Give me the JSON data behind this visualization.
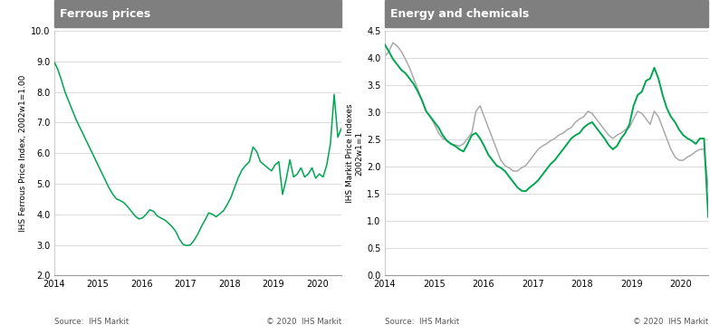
{
  "left_title": "Ferrous prices",
  "right_title": "Energy and chemicals",
  "left_ylabel": "IHS Ferrous Price Index, 2002w1=1.00",
  "right_ylabel": "IHS Markit Price Indexes\n2002w1=1",
  "left_source": "Source:  IHS Markit",
  "right_source": "Source:  IHS Markit",
  "copyright": "© 2020  IHS Markit",
  "header_color": "#7f7f7f",
  "header_text_color": "#ffffff",
  "green_color": "#00a651",
  "gray_color": "#aaaaaa",
  "bg_color": "#ffffff",
  "plot_bg_color": "#ffffff",
  "grid_color": "#cccccc",
  "left_ylim": [
    2.0,
    10.0
  ],
  "left_yticks": [
    2.0,
    3.0,
    4.0,
    5.0,
    6.0,
    7.0,
    8.0,
    9.0,
    10.0
  ],
  "right_ylim": [
    0.0,
    4.5
  ],
  "right_yticks": [
    0.0,
    0.5,
    1.0,
    1.5,
    2.0,
    2.5,
    3.0,
    3.5,
    4.0,
    4.5
  ],
  "xtick_labels": [
    "2014",
    "2015",
    "2016",
    "2017",
    "2018",
    "2019",
    "2020"
  ],
  "ferrous_y": [
    9.0,
    8.75,
    8.4,
    8.0,
    7.7,
    7.4,
    7.1,
    6.85,
    6.6,
    6.35,
    6.1,
    5.85,
    5.6,
    5.35,
    5.1,
    4.85,
    4.65,
    4.5,
    4.45,
    4.38,
    4.25,
    4.1,
    3.95,
    3.85,
    3.88,
    4.0,
    4.15,
    4.1,
    3.95,
    3.88,
    3.82,
    3.72,
    3.6,
    3.45,
    3.2,
    3.02,
    2.98,
    3.0,
    3.15,
    3.35,
    3.6,
    3.82,
    4.05,
    4.0,
    3.92,
    4.02,
    4.12,
    4.32,
    4.55,
    4.88,
    5.2,
    5.45,
    5.6,
    5.72,
    6.2,
    6.05,
    5.72,
    5.62,
    5.52,
    5.42,
    5.62,
    5.72,
    4.65,
    5.15,
    5.78,
    5.22,
    5.32,
    5.52,
    5.22,
    5.32,
    5.52,
    5.18,
    5.32,
    5.22,
    5.62,
    6.32,
    7.92,
    6.52,
    6.82
  ],
  "energy_y": [
    4.25,
    4.12,
    3.98,
    3.88,
    3.78,
    3.72,
    3.62,
    3.52,
    3.38,
    3.22,
    3.02,
    2.92,
    2.82,
    2.72,
    2.58,
    2.48,
    2.42,
    2.38,
    2.32,
    2.28,
    2.42,
    2.58,
    2.62,
    2.52,
    2.38,
    2.22,
    2.12,
    2.02,
    1.98,
    1.92,
    1.82,
    1.72,
    1.62,
    1.56,
    1.55,
    1.62,
    1.68,
    1.75,
    1.85,
    1.95,
    2.05,
    2.12,
    2.22,
    2.32,
    2.42,
    2.52,
    2.58,
    2.62,
    2.72,
    2.78,
    2.82,
    2.72,
    2.62,
    2.52,
    2.4,
    2.32,
    2.38,
    2.52,
    2.62,
    2.78,
    3.12,
    3.32,
    3.38,
    3.58,
    3.62,
    3.82,
    3.62,
    3.32,
    3.08,
    2.92,
    2.82,
    2.68,
    2.58,
    2.52,
    2.48,
    2.42,
    2.52,
    2.52,
    1.08
  ],
  "chemicals_y": [
    4.02,
    4.12,
    4.28,
    4.22,
    4.12,
    3.98,
    3.82,
    3.62,
    3.42,
    3.22,
    3.02,
    2.92,
    2.78,
    2.62,
    2.52,
    2.48,
    2.42,
    2.4,
    2.38,
    2.42,
    2.52,
    2.62,
    3.02,
    3.12,
    2.92,
    2.72,
    2.52,
    2.32,
    2.12,
    2.02,
    1.98,
    1.92,
    1.92,
    1.98,
    2.02,
    2.12,
    2.22,
    2.32,
    2.38,
    2.42,
    2.48,
    2.52,
    2.58,
    2.62,
    2.68,
    2.72,
    2.82,
    2.88,
    2.92,
    3.02,
    2.98,
    2.88,
    2.78,
    2.68,
    2.58,
    2.52,
    2.58,
    2.62,
    2.68,
    2.72,
    2.88,
    3.02,
    2.98,
    2.88,
    2.78,
    3.02,
    2.92,
    2.72,
    2.52,
    2.32,
    2.18,
    2.12,
    2.12,
    2.18,
    2.22,
    2.28,
    2.32,
    2.32,
    1.62
  ]
}
